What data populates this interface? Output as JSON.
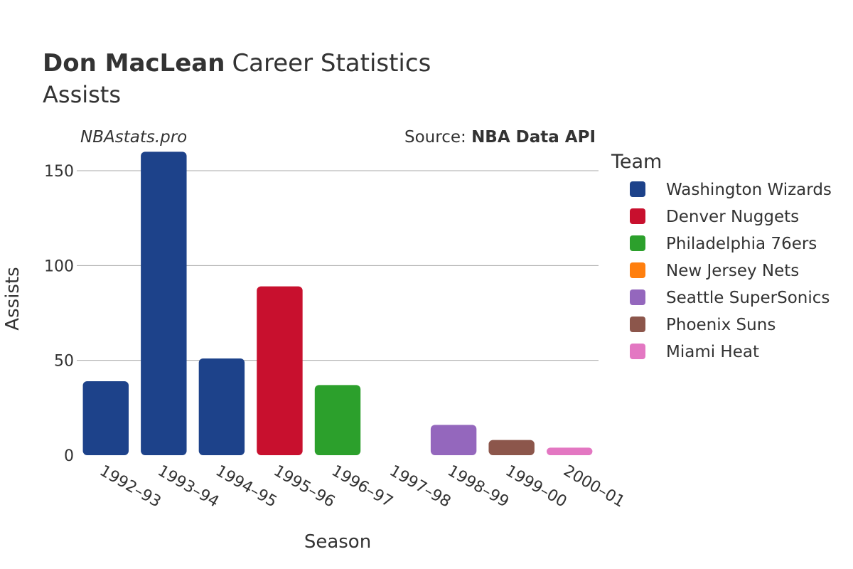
{
  "header": {
    "player": "Don MacLean",
    "title_rest": "Career Statistics",
    "subtitle": "Assists"
  },
  "watermark": "NBAstats.pro",
  "source": {
    "prefix": "Source: ",
    "name": "NBA Data API"
  },
  "chart_data": {
    "type": "bar",
    "categories": [
      "1992–93",
      "1993–94",
      "1994–95",
      "1995–96",
      "1996–97",
      "1997–98",
      "1998–99",
      "1999–00",
      "2000–01"
    ],
    "values": [
      39,
      160,
      51,
      89,
      37,
      0,
      16,
      8,
      4
    ],
    "teams": [
      "Washington Wizards",
      "Washington Wizards",
      "Washington Wizards",
      "Denver Nuggets",
      "Philadelphia 76ers",
      "New Jersey Nets",
      "Seattle SuperSonics",
      "Phoenix Suns",
      "Miami Heat"
    ],
    "xlabel": "Season",
    "ylabel": "Assists",
    "ylim": [
      0,
      165
    ],
    "yticks": [
      0,
      50,
      100,
      150
    ],
    "grid": true,
    "legend": {
      "title": "Team",
      "position": "right",
      "entries": [
        {
          "name": "Washington Wizards",
          "color": "#1d428a"
        },
        {
          "name": "Denver Nuggets",
          "color": "#c8102e"
        },
        {
          "name": "Philadelphia 76ers",
          "color": "#2ca02c"
        },
        {
          "name": "New Jersey Nets",
          "color": "#ff7f0e"
        },
        {
          "name": "Seattle SuperSonics",
          "color": "#9467bd"
        },
        {
          "name": "Phoenix Suns",
          "color": "#8c564b"
        },
        {
          "name": "Miami Heat",
          "color": "#e377c2"
        }
      ]
    }
  }
}
